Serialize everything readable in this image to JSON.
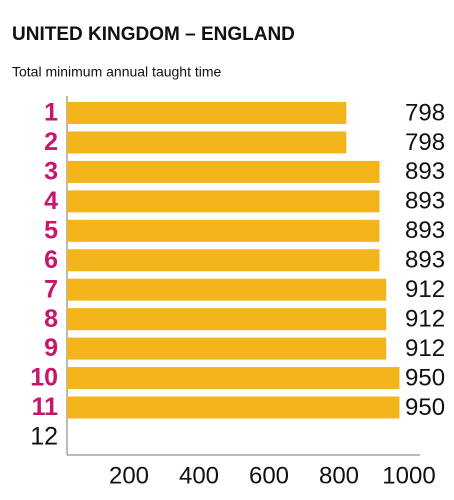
{
  "chart_data": {
    "type": "hbar",
    "title": "UNITED KINGDOM – ENGLAND",
    "subtitle": "Total minimum annual taught time",
    "categories": [
      "1",
      "2",
      "3",
      "4",
      "5",
      "6",
      "7",
      "8",
      "9",
      "10",
      "11",
      "12"
    ],
    "values": [
      798,
      798,
      893,
      893,
      893,
      893,
      912,
      912,
      912,
      950,
      950,
      null
    ],
    "color": "#f4b41c",
    "label_color": "#c8156e",
    "xlim": [
      0,
      1000
    ],
    "xticks": [
      200,
      400,
      600,
      800,
      1000
    ],
    "grid": false
  }
}
